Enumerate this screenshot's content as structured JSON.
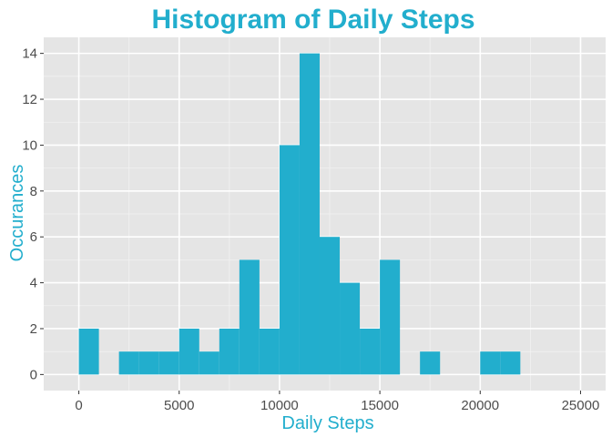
{
  "chart_data": {
    "type": "bar",
    "title": "Histogram of Daily Steps",
    "xlabel": "Daily Steps",
    "ylabel": "Occurances",
    "bin_width": 1000,
    "bins": [
      {
        "start": 0,
        "count": 2
      },
      {
        "start": 1000,
        "count": 0
      },
      {
        "start": 2000,
        "count": 1
      },
      {
        "start": 3000,
        "count": 1
      },
      {
        "start": 4000,
        "count": 1
      },
      {
        "start": 5000,
        "count": 2
      },
      {
        "start": 6000,
        "count": 1
      },
      {
        "start": 7000,
        "count": 2
      },
      {
        "start": 8000,
        "count": 5
      },
      {
        "start": 9000,
        "count": 2
      },
      {
        "start": 10000,
        "count": 10
      },
      {
        "start": 11000,
        "count": 14
      },
      {
        "start": 12000,
        "count": 6
      },
      {
        "start": 13000,
        "count": 4
      },
      {
        "start": 14000,
        "count": 2
      },
      {
        "start": 15000,
        "count": 5
      },
      {
        "start": 16000,
        "count": 0
      },
      {
        "start": 17000,
        "count": 1
      },
      {
        "start": 18000,
        "count": 0
      },
      {
        "start": 19000,
        "count": 0
      },
      {
        "start": 20000,
        "count": 1
      },
      {
        "start": 21000,
        "count": 1
      }
    ],
    "xlim": [
      -1750,
      26250
    ],
    "ylim": [
      -0.7,
      14.7
    ],
    "x_ticks": [
      0,
      5000,
      10000,
      15000,
      20000,
      25000
    ],
    "x_tick_labels": [
      "0",
      "5000",
      "10000",
      "15000",
      "20000",
      "25000"
    ],
    "y_ticks": [
      0,
      2,
      4,
      6,
      8,
      10,
      12,
      14
    ],
    "y_tick_labels": [
      "0",
      "2",
      "4",
      "6",
      "8",
      "10",
      "12",
      "14"
    ],
    "grid": true,
    "colors": {
      "bar": "#22aecd",
      "title": "#22aecd",
      "axis_title": "#22aecd",
      "panel": "#e5e5e5",
      "grid_major": "#ffffff",
      "grid_minor": "#f2f2f2",
      "tick_label": "#4d4d4d"
    }
  }
}
